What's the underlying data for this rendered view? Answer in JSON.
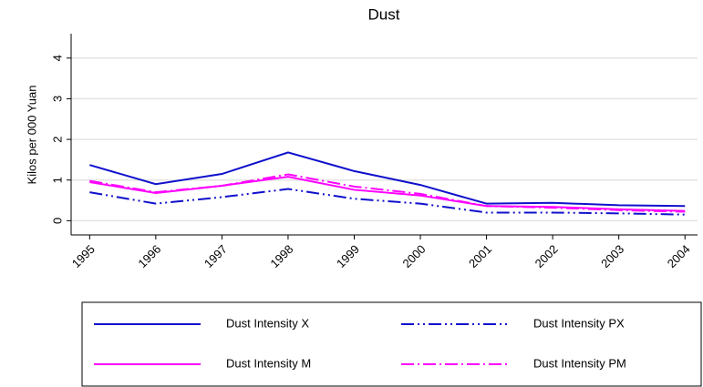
{
  "chart_data": {
    "type": "line",
    "title": "Dust",
    "y_label": "Kilos per 000 Yuan",
    "x": [
      1995,
      1996,
      1997,
      1998,
      1999,
      2000,
      2001,
      2002,
      2003,
      2004
    ],
    "xlim": [
      1994.72,
      2004.19
    ],
    "xticks": [
      1995,
      1996,
      1997,
      1998,
      1999,
      2000,
      2001,
      2002,
      2003,
      2004
    ],
    "ylim": [
      -0.35,
      4.6
    ],
    "yticks": [
      0,
      1,
      2,
      3,
      4
    ],
    "grid": true,
    "legend": "bottom",
    "series": [
      {
        "name": "Dust Intensity X",
        "color": "#1010cc",
        "style": "solid",
        "values": [
          1.37,
          0.9,
          1.15,
          1.68,
          1.22,
          0.88,
          0.42,
          0.44,
          0.38,
          0.36
        ]
      },
      {
        "name": "Dust Intensity PX",
        "color": "#1010cc",
        "style": "dash-dot-dot",
        "values": [
          0.7,
          0.42,
          0.58,
          0.78,
          0.54,
          0.42,
          0.2,
          0.2,
          0.18,
          0.15
        ]
      },
      {
        "name": "Dust Intensity M",
        "color": "#ff00ff",
        "style": "solid",
        "values": [
          0.95,
          0.68,
          0.86,
          1.08,
          0.76,
          0.62,
          0.36,
          0.34,
          0.28,
          0.24
        ]
      },
      {
        "name": "Dust Intensity PM",
        "color": "#ff00ff",
        "style": "dash-dot",
        "values": [
          0.98,
          0.7,
          0.86,
          1.14,
          0.84,
          0.66,
          0.36,
          0.32,
          0.26,
          0.22
        ]
      }
    ]
  }
}
